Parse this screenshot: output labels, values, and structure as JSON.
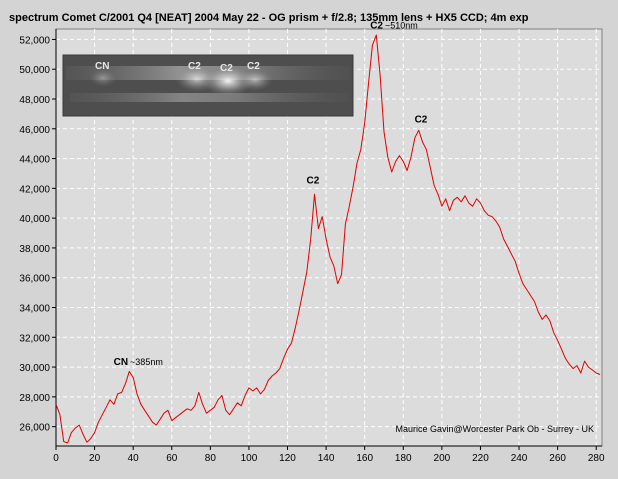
{
  "chart_data": {
    "type": "line",
    "title": "spectrum Comet C/2001 Q4 [NEAT] 2004 May 22 -  OG prism + f/2.8; 135mm lens + HX5 CCD; 4m exp",
    "xlabel": "",
    "ylabel": "",
    "xlim": [
      0,
      283
    ],
    "ylim": [
      24700,
      52700
    ],
    "x_ticks": [
      0,
      20,
      40,
      60,
      80,
      100,
      120,
      140,
      160,
      180,
      200,
      220,
      240,
      260,
      280
    ],
    "y_ticks": [
      26000,
      28000,
      30000,
      32000,
      34000,
      36000,
      38000,
      40000,
      42000,
      44000,
      46000,
      48000,
      50000,
      52000
    ],
    "x_tick_labels": [
      "0",
      "20",
      "40",
      "60",
      "80",
      "100",
      "120",
      "140",
      "160",
      "180",
      "200",
      "220",
      "240",
      "260",
      "280"
    ],
    "y_tick_labels": [
      "26,000",
      "28,000",
      "30,000",
      "32,000",
      "34,000",
      "36,000",
      "38,000",
      "40,000",
      "42,000",
      "44,000",
      "46,000",
      "48,000",
      "50,000",
      "52,000"
    ],
    "grid": true,
    "series": [
      {
        "color": "#e00000",
        "x": [
          0,
          2,
          4,
          6,
          8,
          10,
          12,
          14,
          16,
          18,
          20,
          22,
          24,
          26,
          28,
          30,
          32,
          34,
          36,
          38,
          40,
          42,
          44,
          46,
          48,
          50,
          52,
          54,
          56,
          58,
          60,
          62,
          64,
          66,
          68,
          70,
          72,
          74,
          76,
          78,
          80,
          82,
          84,
          86,
          88,
          90,
          92,
          94,
          96,
          98,
          100,
          102,
          104,
          106,
          108,
          110,
          112,
          114,
          116,
          118,
          120,
          122,
          124,
          126,
          128,
          130,
          132,
          134,
          136,
          138,
          140,
          142,
          144,
          146,
          148,
          150,
          152,
          154,
          156,
          158,
          160,
          162,
          164,
          166,
          168,
          170,
          172,
          174,
          176,
          178,
          180,
          182,
          184,
          186,
          188,
          190,
          192,
          194,
          196,
          198,
          200,
          202,
          204,
          206,
          208,
          210,
          212,
          214,
          216,
          218,
          220,
          222,
          224,
          226,
          228,
          230,
          232,
          234,
          236,
          238,
          240,
          242,
          244,
          246,
          248,
          250,
          252,
          254,
          256,
          258,
          260,
          262,
          264,
          266,
          268,
          270,
          272,
          274,
          276,
          278,
          280,
          282
        ],
        "y": [
          27500,
          26800,
          25000,
          24900,
          25600,
          25900,
          26100,
          25500,
          24950,
          25200,
          25600,
          26300,
          26800,
          27300,
          27800,
          27500,
          28200,
          28300,
          28900,
          29700,
          29300,
          28200,
          27500,
          27100,
          26700,
          26300,
          26100,
          26500,
          26900,
          27100,
          26400,
          26600,
          26800,
          27000,
          27200,
          27100,
          27400,
          28300,
          27500,
          26900,
          27100,
          27300,
          27800,
          28100,
          27100,
          26800,
          27200,
          27600,
          27400,
          28100,
          28600,
          28400,
          28600,
          28200,
          28500,
          29100,
          29400,
          29600,
          29900,
          30600,
          31200,
          31600,
          32600,
          33800,
          35100,
          36400,
          38600,
          41600,
          39300,
          40100,
          38600,
          37400,
          36800,
          35600,
          36200,
          39600,
          40800,
          42100,
          43700,
          44600,
          46400,
          49100,
          51600,
          52300,
          49600,
          45800,
          44100,
          43100,
          43800,
          44200,
          43800,
          43200,
          44100,
          45400,
          45900,
          45100,
          44600,
          43400,
          42200,
          41600,
          40800,
          41300,
          40500,
          41200,
          41400,
          41100,
          41500,
          41000,
          40800,
          41300,
          41000,
          40500,
          40200,
          40100,
          39800,
          39400,
          38600,
          38100,
          37600,
          37100,
          36300,
          35600,
          35200,
          34800,
          34400,
          33700,
          33200,
          33500,
          33100,
          32300,
          31800,
          31200,
          30600,
          30200,
          29900,
          30100,
          29600,
          30400,
          30000,
          29800,
          29600,
          29500
        ]
      }
    ],
    "annotations": [
      {
        "x": 34,
        "y": 30000,
        "bold": "CN",
        "small": "~385nm"
      },
      {
        "x": 134,
        "y": 42200,
        "bold": "C2",
        "small": ""
      },
      {
        "x": 167,
        "y": 52600,
        "bold": "C2",
        "small": "~510nm"
      },
      {
        "x": 190,
        "y": 46300,
        "bold": "C2",
        "small": ""
      }
    ],
    "credit": "Maurice Gavin@Worcester Park Ob - Surrey - UK",
    "inset_labels": [
      "CN",
      "C2",
      "C2",
      "C2"
    ]
  },
  "colors": {
    "background": "#d4d4d4",
    "plot_background": "#dcdcdc",
    "grid": "#ffffff",
    "line": "#e00000"
  }
}
